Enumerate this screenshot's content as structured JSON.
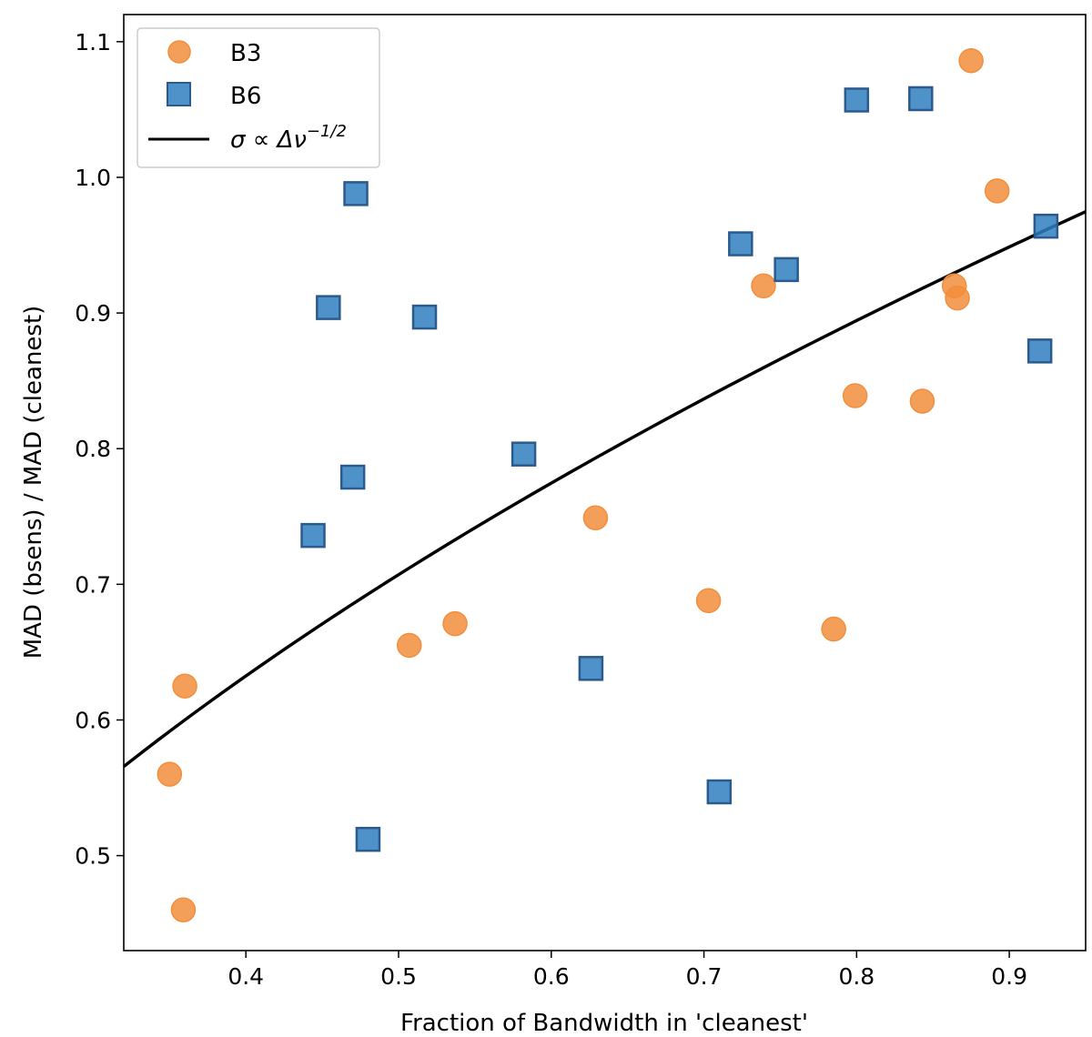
{
  "chart_data": {
    "type": "scatter",
    "xlabel": "Fraction of Bandwidth in 'cleanest'",
    "ylabel": "MAD (bsens) / MAD (cleanest)",
    "xlim": [
      0.32,
      0.95
    ],
    "ylim": [
      0.43,
      1.12
    ],
    "xticks": [
      0.4,
      0.5,
      0.6,
      0.7,
      0.8,
      0.9
    ],
    "xtick_labels": [
      "0.4",
      "0.5",
      "0.6",
      "0.7",
      "0.8",
      "0.9"
    ],
    "yticks": [
      0.5,
      0.6,
      0.7,
      0.8,
      0.9,
      1.0,
      1.1
    ],
    "ytick_labels": [
      "0.5",
      "0.6",
      "0.7",
      "0.8",
      "0.9",
      "1.0",
      "1.1"
    ],
    "grid": false,
    "legend_position": "top-left",
    "series": [
      {
        "name": "B3",
        "marker": "circle",
        "color": "#f28e3c",
        "points": [
          [
            0.35,
            0.56
          ],
          [
            0.359,
            0.46
          ],
          [
            0.36,
            0.625
          ],
          [
            0.507,
            0.655
          ],
          [
            0.537,
            0.671
          ],
          [
            0.629,
            0.749
          ],
          [
            0.703,
            0.688
          ],
          [
            0.739,
            0.92
          ],
          [
            0.785,
            0.667
          ],
          [
            0.799,
            0.839
          ],
          [
            0.843,
            0.835
          ],
          [
            0.864,
            0.92
          ],
          [
            0.866,
            0.911
          ],
          [
            0.875,
            1.086
          ],
          [
            0.892,
            0.99
          ]
        ]
      },
      {
        "name": "B6",
        "marker": "square",
        "color": "#2f7fbf",
        "points": [
          [
            0.444,
            0.736
          ],
          [
            0.454,
            0.904
          ],
          [
            0.47,
            0.779
          ],
          [
            0.472,
            0.988
          ],
          [
            0.48,
            0.512
          ],
          [
            0.517,
            0.897
          ],
          [
            0.582,
            0.796
          ],
          [
            0.626,
            0.638
          ],
          [
            0.71,
            0.547
          ],
          [
            0.724,
            0.951
          ],
          [
            0.754,
            0.932
          ],
          [
            0.8,
            1.057
          ],
          [
            0.842,
            1.058
          ],
          [
            0.92,
            0.872
          ],
          [
            0.924,
            0.964
          ]
        ]
      }
    ],
    "line": {
      "name": "σ ∝ Δν",
      "name_superscript": "−1/2",
      "color": "#000000",
      "formula": "y = x^0.5",
      "x_range": [
        0.32,
        0.95
      ]
    }
  }
}
